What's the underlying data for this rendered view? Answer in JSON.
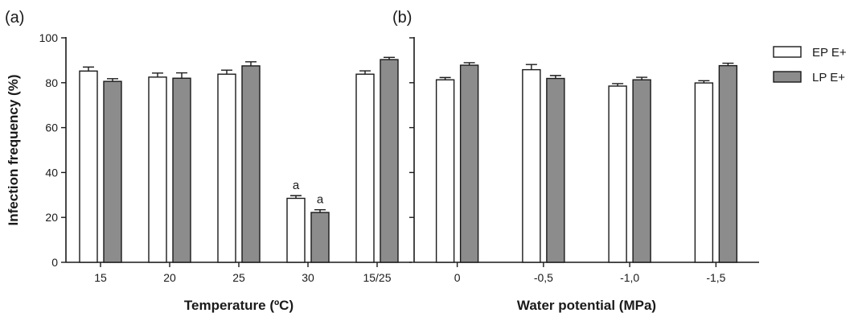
{
  "chart_data": [
    {
      "type": "bar",
      "panel_label": "(a)",
      "xlabel": "Temperature (ºC)",
      "ylabel": "Infection frequency (%)",
      "ylim": [
        0,
        100
      ],
      "yticks": [
        "0",
        "20",
        "40",
        "60",
        "80",
        "100"
      ],
      "categories": [
        "15",
        "20",
        "25",
        "30",
        "15/25"
      ],
      "series": [
        {
          "name": "EP E+",
          "color": "#ffffff",
          "values": [
            85.2,
            82.5,
            83.8,
            28.5,
            83.8
          ],
          "errors": [
            1.8,
            1.8,
            1.8,
            1.2,
            1.5
          ]
        },
        {
          "name": "LP E+",
          "color": "#8c8c8c",
          "values": [
            80.6,
            82.0,
            87.5,
            22.2,
            90.3
          ],
          "errors": [
            1.2,
            2.4,
            1.8,
            1.2,
            1.0
          ]
        }
      ],
      "annotations": [
        {
          "category": "30",
          "series": "EP E+",
          "text": "a"
        },
        {
          "category": "30",
          "series": "LP E+",
          "text": "a"
        }
      ]
    },
    {
      "type": "bar",
      "panel_label": "(b)",
      "xlabel": "Water potential (MPa)",
      "ylabel": "",
      "ylim": [
        0,
        100
      ],
      "categories": [
        "0",
        "-0,5",
        "-1,0",
        "-1,5"
      ],
      "series": [
        {
          "name": "EP E+",
          "color": "#ffffff",
          "values": [
            81.3,
            85.8,
            78.5,
            79.9
          ],
          "errors": [
            1.0,
            2.3,
            1.1,
            1.0
          ]
        },
        {
          "name": "LP E+",
          "color": "#8c8c8c",
          "values": [
            87.8,
            81.9,
            81.3,
            87.6
          ],
          "errors": [
            1.1,
            1.3,
            1.1,
            1.1
          ]
        }
      ],
      "annotations": []
    }
  ],
  "legend": {
    "placement": "top-right",
    "items": [
      {
        "label": "EP E+",
        "color": "#ffffff"
      },
      {
        "label": "LP E+",
        "color": "#8c8c8c"
      }
    ]
  }
}
